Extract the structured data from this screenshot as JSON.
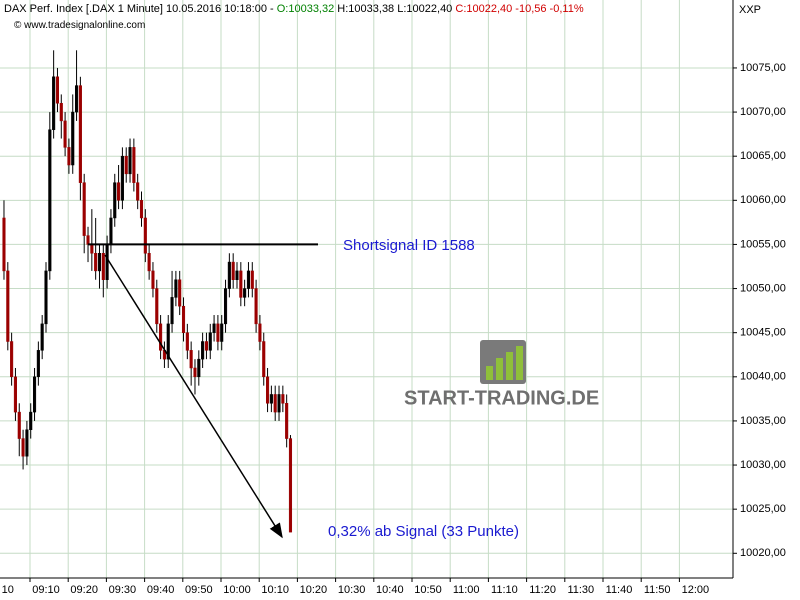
{
  "chart_data": {
    "type": "candlestick",
    "header": {
      "symbol": "DAX Perf. Index [.DAX  1 Minute] 10.05.2016 10:18:00 -",
      "open": "O:10033,32",
      "high": "H:10033,38",
      "low": "L:10022,40",
      "close": "C:10022,40 -10,56 -0,11%"
    },
    "source": "© www.tradesignalonline.com",
    "corner_label": "XXP",
    "watermark": "START-TRADING.DE",
    "annotations": {
      "signal": "Shortsignal ID 1588",
      "result": "0,32% ab Signal (33 Punkte)"
    },
    "signal_level": 10055,
    "up_color": "#000000",
    "down_color": "#9b0000",
    "grid": true,
    "xlim": [
      538,
      729.8
    ],
    "ylim": [
      10017.2,
      10082.7
    ],
    "xticks": [
      {
        "value": 540,
        "label": "10"
      },
      {
        "value": 550,
        "label": "09:10"
      },
      {
        "value": 560,
        "label": "09:20"
      },
      {
        "value": 570,
        "label": "09:30"
      },
      {
        "value": 580,
        "label": "09:40"
      },
      {
        "value": 590,
        "label": "09:50"
      },
      {
        "value": 600,
        "label": "10:00"
      },
      {
        "value": 610,
        "label": "10:10"
      },
      {
        "value": 620,
        "label": "10:20"
      },
      {
        "value": 630,
        "label": "10:30"
      },
      {
        "value": 640,
        "label": "10:40"
      },
      {
        "value": 650,
        "label": "10:50"
      },
      {
        "value": 660,
        "label": "11:00"
      },
      {
        "value": 670,
        "label": "11:10"
      },
      {
        "value": 680,
        "label": "11:20"
      },
      {
        "value": 690,
        "label": "11:30"
      },
      {
        "value": 700,
        "label": "11:40"
      },
      {
        "value": 710,
        "label": "11:50"
      },
      {
        "value": 720,
        "label": "12:00"
      }
    ],
    "yticks": [
      {
        "value": 10020,
        "label": "10020,00"
      },
      {
        "value": 10025,
        "label": "10025,00"
      },
      {
        "value": 10030,
        "label": "10030,00"
      },
      {
        "value": 10035,
        "label": "10035,00"
      },
      {
        "value": 10040,
        "label": "10040,00"
      },
      {
        "value": 10045,
        "label": "10045,00"
      },
      {
        "value": 10050,
        "label": "10050,00"
      },
      {
        "value": 10055,
        "label": "10055,00"
      },
      {
        "value": 10060,
        "label": "10060,00"
      },
      {
        "value": 10065,
        "label": "10065,00"
      },
      {
        "value": 10070,
        "label": "10070,00"
      },
      {
        "value": 10075,
        "label": "10075,00"
      }
    ],
    "x": [
      539,
      540,
      541,
      542,
      543,
      544,
      545,
      546,
      547,
      548,
      549,
      550,
      551,
      552,
      553,
      554,
      555,
      556,
      557,
      558,
      559,
      560,
      561,
      562,
      563,
      564,
      565,
      566,
      567,
      568,
      569,
      570,
      571,
      572,
      573,
      574,
      575,
      576,
      577,
      578,
      579,
      580,
      581,
      582,
      583,
      584,
      585,
      586,
      587,
      588,
      589,
      590,
      591,
      592,
      593,
      594,
      595,
      596,
      597,
      598,
      599,
      600,
      601,
      602,
      603,
      604,
      605,
      606,
      607,
      608,
      609,
      610,
      611,
      612,
      613,
      614
    ],
    "open": [
      10058,
      10052,
      10044,
      10040,
      10036,
      10033,
      10031,
      10034,
      10036,
      10040,
      10043,
      10046,
      10052,
      10068,
      10074,
      10071,
      10069,
      10066,
      10064,
      10070,
      10073,
      10062,
      10056,
      10055,
      10054,
      10052,
      10054,
      10051,
      10055,
      10058,
      10062,
      10060,
      10065,
      10063,
      10066,
      10062,
      10060,
      10058,
      10054,
      10052,
      10050,
      10046,
      10043,
      10042,
      10046,
      10049,
      10051,
      10048,
      10045,
      10043,
      10041,
      10040,
      10042,
      10044,
      10043,
      10045,
      10046,
      10044,
      10046,
      10050,
      10053,
      10051,
      10052,
      10049,
      10050,
      10052,
      10050,
      10046,
      10044,
      10040,
      10037,
      10038,
      10036,
      10038,
      10037,
      10033
    ],
    "high": [
      10060,
      10053,
      10045,
      10041,
      10037,
      10034,
      10035,
      10037,
      10041,
      10044,
      10047,
      10053,
      10070,
      10077,
      10075,
      10072,
      10070,
      10067,
      10072,
      10077,
      10074,
      10063,
      10057,
      10059,
      10058,
      10055,
      10055,
      10056,
      10059,
      10063,
      10064,
      10066,
      10066,
      10067,
      10067,
      10063,
      10061,
      10059,
      10055,
      10053,
      10051,
      10047,
      10044,
      10047,
      10052,
      10052,
      10052,
      10049,
      10046,
      10044,
      10042,
      10043,
      10045,
      10045,
      10046,
      10047,
      10047,
      10047,
      10051,
      10054,
      10054,
      10053,
      10053,
      10051,
      10053,
      10053,
      10051,
      10047,
      10045,
      10041,
      10039,
      10039,
      10039,
      10039,
      10038,
      10033.4
    ],
    "low": [
      10051,
      10043,
      10039,
      10035,
      10031,
      10029.5,
      10030,
      10033,
      10035,
      10039,
      10042,
      10045,
      10051,
      10067,
      10070,
      10067,
      10065,
      10063,
      10063,
      10069,
      10060,
      10054,
      10053,
      10052,
      10051,
      10050,
      10049,
      10050,
      10054,
      10057,
      10059,
      10059,
      10062,
      10062,
      10061,
      10059,
      10057,
      10053,
      10051,
      10049,
      10045,
      10042,
      10041,
      10041,
      10045,
      10048,
      10047,
      10044,
      10042,
      10039,
      10038,
      10039,
      10041,
      10042,
      10042,
      10044,
      10043,
      10043,
      10045,
      10049,
      10050,
      10050,
      10048,
      10048,
      10049,
      10049,
      10045,
      10043,
      10039,
      10036,
      10036,
      10035,
      10035,
      10036,
      10032,
      10022.4
    ],
    "close": [
      10052,
      10044,
      10040,
      10036,
      10033,
      10031,
      10034,
      10036,
      10040,
      10043,
      10046,
      10052,
      10068,
      10074,
      10071,
      10069,
      10066,
      10064,
      10070,
      10073,
      10062,
      10056,
      10055,
      10054,
      10052,
      10054,
      10051,
      10055,
      10058,
      10062,
      10060,
      10065,
      10063,
      10066,
      10062,
      10060,
      10058,
      10054,
      10052,
      10050,
      10046,
      10043,
      10042,
      10046,
      10049,
      10051,
      10048,
      10045,
      10043,
      10041,
      10040,
      10042,
      10044,
      10043,
      10045,
      10046,
      10044,
      10046,
      10050,
      10053,
      10051,
      10052,
      10049,
      10050,
      10052,
      10050,
      10046,
      10044,
      10040,
      10037,
      10038,
      10036,
      10038,
      10037,
      10033,
      10022.4
    ]
  }
}
